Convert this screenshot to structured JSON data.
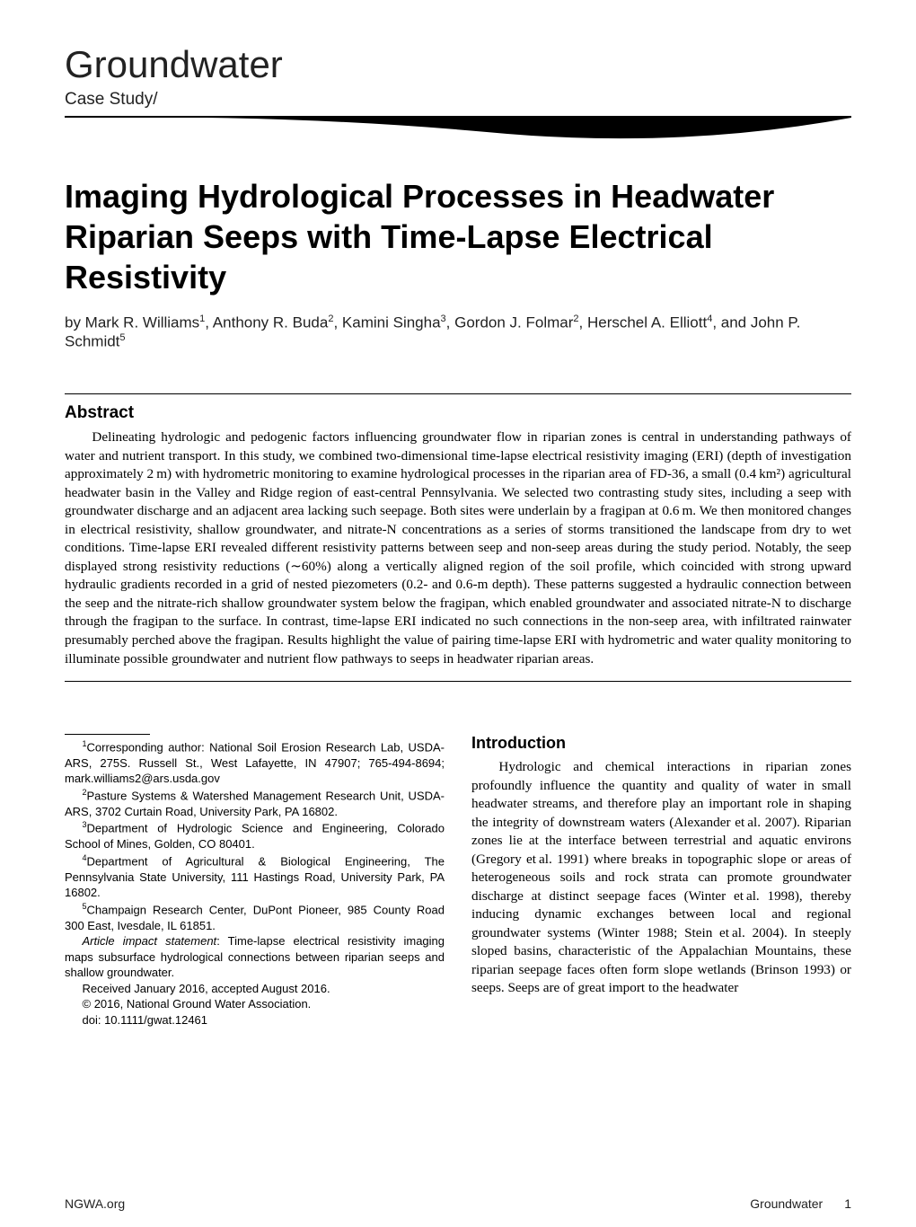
{
  "journal": {
    "name": "Groundwater",
    "section_label": "Case Study/"
  },
  "article": {
    "title": "Imaging Hydrological Processes in Headwater Riparian Seeps with Time-Lapse Electrical Resistivity",
    "authors_html": "by Mark R. Williams<sup>1</sup>, Anthony R. Buda<sup>2</sup>, Kamini Singha<sup>3</sup>, Gordon J. Folmar<sup>2</sup>, Herschel A. Elliott<sup>4</sup>, and John P. Schmidt<sup>5</sup>"
  },
  "abstract": {
    "heading": "Abstract",
    "text": "Delineating hydrologic and pedogenic factors influencing groundwater flow in riparian zones is central in understanding pathways of water and nutrient transport. In this study, we combined two-dimensional time-lapse electrical resistivity imaging (ERI) (depth of investigation approximately 2 m) with hydrometric monitoring to examine hydrological processes in the riparian area of FD-36, a small (0.4 km²) agricultural headwater basin in the Valley and Ridge region of east-central Pennsylvania. We selected two contrasting study sites, including a seep with groundwater discharge and an adjacent area lacking such seepage. Both sites were underlain by a fragipan at 0.6 m. We then monitored changes in electrical resistivity, shallow groundwater, and nitrate-N concentrations as a series of storms transitioned the landscape from dry to wet conditions. Time-lapse ERI revealed different resistivity patterns between seep and non-seep areas during the study period. Notably, the seep displayed strong resistivity reductions (∼60%) along a vertically aligned region of the soil profile, which coincided with strong upward hydraulic gradients recorded in a grid of nested piezometers (0.2- and 0.6-m depth). These patterns suggested a hydraulic connection between the seep and the nitrate-rich shallow groundwater system below the fragipan, which enabled groundwater and associated nitrate-N to discharge through the fragipan to the surface. In contrast, time-lapse ERI indicated no such connections in the non-seep area, with infiltrated rainwater presumably perched above the fragipan. Results highlight the value of pairing time-lapse ERI with hydrometric and water quality monitoring to illuminate possible groundwater and nutrient flow pathways to seeps in headwater riparian areas."
  },
  "footnotes": {
    "f1": "Corresponding author: National Soil Erosion Research Lab, USDA-ARS, 275S. Russell St., West Lafayette, IN 47907; 765-494-8694; mark.williams2@ars.usda.gov",
    "f2": "Pasture Systems & Watershed Management Research Unit, USDA-ARS, 3702 Curtain Road, University Park, PA 16802.",
    "f3": "Department of Hydrologic Science and Engineering, Colorado School of Mines, Golden, CO 80401.",
    "f4": "Department of Agricultural & Biological Engineering, The Pennsylvania State University, 111 Hastings Road, University Park, PA 16802.",
    "f5": "Champaign Research Center, DuPont Pioneer, 985 County Road 300 East, Ivesdale, IL 61851.",
    "impact_label": "Article impact statement",
    "impact_text": ": Time-lapse electrical resistivity imaging maps subsurface hydrological connections between riparian seeps and shallow groundwater.",
    "received": "Received  January 2016, accepted  August 2016.",
    "copyright": "© 2016, National Ground Water Association.",
    "doi": "doi: 10.1111/gwat.12461"
  },
  "introduction": {
    "heading": "Introduction",
    "text": "Hydrologic and chemical interactions in riparian zones profoundly influence the quantity and quality of water in small headwater streams, and therefore play an important role in shaping the integrity of downstream waters (Alexander et al. 2007). Riparian zones lie at the interface between terrestrial and aquatic environs (Gregory et al. 1991) where breaks in topographic slope or areas of heterogeneous soils and rock strata can promote groundwater discharge at distinct seepage faces (Winter et al. 1998), thereby inducing dynamic exchanges between local and regional groundwater systems (Winter 1988; Stein et al. 2004). In steeply sloped basins, characteristic of the Appalachian Mountains, these riparian seepage faces often form slope wetlands (Brinson 1993) or seeps. Seeps are of great import to the headwater"
  },
  "footer": {
    "left": "NGWA.org",
    "right_journal": "Groundwater",
    "page_number": "1"
  },
  "styling": {
    "background_color": "#ffffff",
    "text_color": "#000000",
    "rule_color": "#000000",
    "body_font": "Times New Roman",
    "heading_font": "Segoe UI",
    "journal_name_fontsize": 42,
    "title_fontsize": 36,
    "abstract_fontsize": 15,
    "footnote_fontsize": 13
  }
}
